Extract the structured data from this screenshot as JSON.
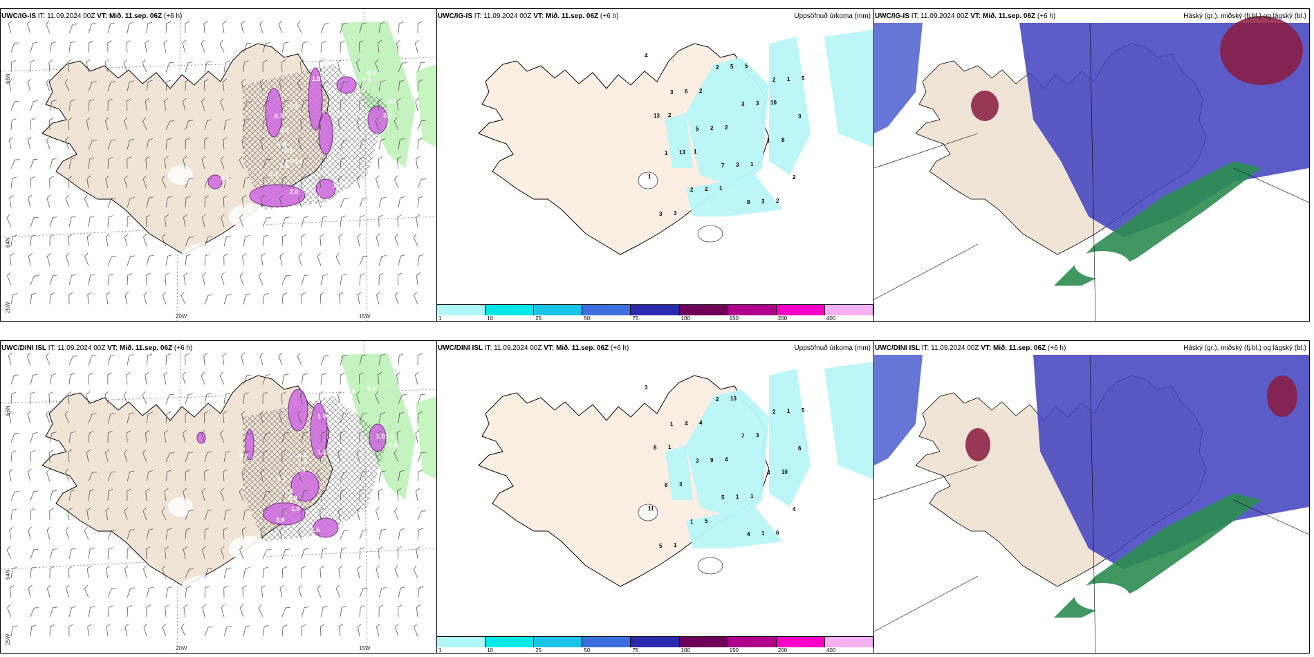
{
  "rows": [
    {
      "wind": {
        "model": "UWC/IG-IS",
        "it": "IT: 11.09.2024 00Z",
        "vt": "VT: Mið. 11.sep. 06Z",
        "lead": "(+6 h)"
      },
      "precip": {
        "model": "UWC/IG-IS",
        "it": "IT: 11.09.2024 00Z",
        "vt": "VT: Mið. 11.sep. 06Z",
        "lead": "(+6 h)",
        "right": "Uppsöfnuð úrkoma (mm)"
      },
      "cloud": {
        "model": "UWC/IG-IS",
        "it": "IT: 11.09.2024 00Z",
        "vt": "VT: Mið. 11.sep. 06Z",
        "lead": "(+6 h)",
        "right": "Háský (gr.), miðský (fj.bl.) og lágský (bl.)"
      },
      "wind_values": [
        "0.6",
        "0.5",
        "0.4",
        "0.3",
        "0.7",
        "0.5",
        "0.9",
        "0.5",
        "1.0",
        "0.6",
        "0.3",
        "0.9",
        "0.8",
        "2.0",
        "1.0",
        "0.4",
        "0.8",
        "1.2",
        "1.0",
        "3.2"
      ],
      "precip_values": [
        "4",
        "3",
        "5",
        "7",
        "8",
        "2",
        "3",
        "1",
        "2",
        "2",
        "3",
        "1",
        "2",
        "3",
        "6",
        "2",
        "3",
        "3",
        "1",
        "13",
        "13",
        "2",
        "5",
        "3",
        "8",
        "1",
        "3",
        "2",
        "2",
        "1",
        "2",
        "5",
        "2",
        "1",
        "1",
        "5",
        "10"
      ]
    },
    {
      "wind": {
        "model": "UWC/DINI ISL",
        "it": "IT: 11.09.2024 00Z",
        "vt": "VT: Mið. 11.sep. 06Z",
        "lead": "(+6 h)"
      },
      "precip": {
        "model": "UWC/DINI ISL",
        "it": "IT: 11.09.2024 00Z",
        "vt": "VT: Mið. 11.sep. 06Z",
        "lead": "(+6 h)",
        "right": "Uppsöfnuð úrkoma (mm)"
      },
      "cloud": {
        "model": "UWC/DINI ISL",
        "it": "IT: 11.09.2024 00Z",
        "vt": "VT: Mið. 11.sep. 06Z",
        "lead": "(+6 h)",
        "right": "Háský (gr.), miðský (fj.bl.) og lágský (bl.)"
      },
      "wind_values": [
        "0.6",
        "0.6",
        "0.7",
        "1.0",
        "0.8",
        "1.3",
        "0.9",
        "1.5",
        "0.3",
        "0.3",
        "0.9",
        "1.0",
        "3.9",
        "1.6",
        "0.6",
        "1.0",
        "1.5",
        "0.8",
        "0.6"
      ],
      "precip_values": [
        "3",
        "1",
        "3",
        "5",
        "4",
        "2",
        "6",
        "8",
        "1",
        "2",
        "7",
        "4",
        "4",
        "5",
        "4",
        "9",
        "1",
        "1",
        "1",
        "8",
        "3",
        "5",
        "13",
        "3",
        "10",
        "11",
        "1",
        "4",
        "4",
        "1",
        "6",
        "5",
        "1"
      ]
    }
  ],
  "colorbar": {
    "ticks": [
      "1",
      "10",
      "25",
      "50",
      "75",
      "100",
      "150",
      "200",
      "400"
    ],
    "colors": [
      "#aef7f7",
      "#00e8e8",
      "#1ac4e8",
      "#3b6fe0",
      "#2a2ab0",
      "#6e005a",
      "#b0008c",
      "#ff00c8",
      "#f7b0f0"
    ]
  },
  "axes": {
    "lon": [
      "20W",
      "15W"
    ],
    "lat_top": "66N",
    "lat_mid": "64N",
    "lon_left": "25W"
  },
  "colors": {
    "land": "#f0e4d6",
    "precip_light": "#b8f5f7",
    "wind_purple": "#d070e0",
    "cloud_blue": "#4040c0",
    "cloud_green": "#2c8c50"
  }
}
